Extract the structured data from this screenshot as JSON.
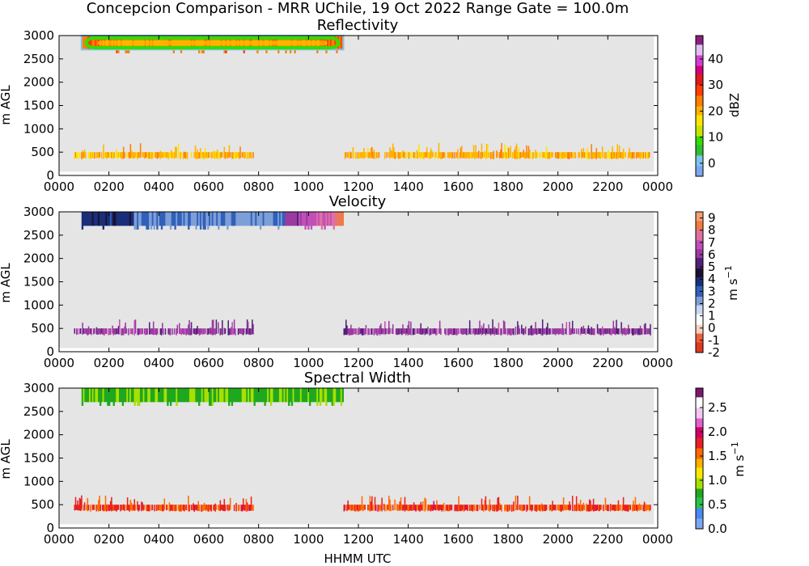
{
  "figure": {
    "suptitle": "Concepcion Comparison - MRR UChile, 19 Oct 2022 Range Gate = 100.0m",
    "xlabel": "HHMM UTC"
  },
  "colors": {
    "background": "#e5e5e5",
    "axes": "#000000"
  },
  "chart_data": [
    {
      "type": "heatmap",
      "title": "Reflectivity",
      "xlabel": "",
      "ylabel": "m AGL",
      "xlim": [
        0,
        2400
      ],
      "ylim": [
        0,
        3000
      ],
      "x_tick_labels": [
        "0000",
        "0200",
        "0400",
        "0600",
        "0800",
        "1000",
        "1200",
        "1400",
        "1600",
        "1800",
        "2000",
        "2200",
        "0000"
      ],
      "y_ticks": [
        0,
        500,
        1000,
        1500,
        2000,
        2500,
        3000
      ],
      "colorbar": {
        "label": "dBZ",
        "range": [
          -5,
          49
        ],
        "ticks": [
          0,
          10,
          20,
          30,
          40
        ],
        "tick_labels": [
          "0",
          "10",
          "20",
          "30",
          "40"
        ],
        "colors": [
          "#7ea6f0",
          "#7fc3ee",
          "#2fbf2f",
          "#33dd00",
          "#c7e400",
          "#ffe500",
          "#ffb300",
          "#ff7f00",
          "#ff3e00",
          "#e01a1a",
          "#d4007a",
          "#d23fd0",
          "#e0c0f0",
          "#8a1f80"
        ]
      },
      "features": {
        "upper_band": {
          "x": [
            90,
            1140
          ],
          "y": [
            2700,
            3000
          ],
          "typical_value": 25,
          "edge_value": 10
        },
        "lower_band_segments": [
          [
            60,
            780
          ],
          [
            1140,
            2370
          ]
        ],
        "lower_band_y": [
          350,
          500
        ],
        "lower_band_typical_value": 20
      }
    },
    {
      "type": "heatmap",
      "title": "Velocity",
      "xlabel": "",
      "ylabel": "m s⁻¹ / m AGL",
      "xlim": [
        0,
        2400
      ],
      "ylim": [
        0,
        3000
      ],
      "x_tick_labels": [
        "0000",
        "0200",
        "0400",
        "0600",
        "0800",
        "1000",
        "1200",
        "1400",
        "1600",
        "1800",
        "2000",
        "2200",
        "0000"
      ],
      "y_ticks": [
        0,
        500,
        1000,
        1500,
        2000,
        2500,
        3000
      ],
      "colorbar": {
        "label": "m s⁻¹",
        "range": [
          -2,
          9.5
        ],
        "ticks": [
          -2,
          -1,
          0,
          1,
          2,
          3,
          4,
          5,
          6,
          7,
          8,
          9
        ],
        "tick_labels": [
          "-2",
          "-1",
          "0",
          "1",
          "2",
          "3",
          "4",
          "5",
          "6",
          "7",
          "8",
          "9"
        ],
        "colors": [
          "#e23820",
          "#f06040",
          "#fbd0c0",
          "#ffffff",
          "#c8d8f0",
          "#7d9fd8",
          "#3060b8",
          "#1a2f78",
          "#1a1030",
          "#50207a",
          "#9b3aa0",
          "#c050b8",
          "#e070a0",
          "#f07a40",
          "#f5a070"
        ]
      },
      "features": {
        "upper_band": {
          "x": [
            90,
            1140
          ],
          "y": [
            2700,
            3000
          ],
          "typical_value": 2.5,
          "late_value": 5.5
        },
        "lower_band_segments": [
          [
            60,
            780
          ],
          [
            1140,
            2370
          ]
        ],
        "lower_band_y": [
          350,
          500
        ],
        "lower_band_typical_value": 6
      }
    },
    {
      "type": "heatmap",
      "title": "Spectral Width",
      "xlabel": "HHMM UTC",
      "ylabel": "m AGL",
      "xlim": [
        0,
        2400
      ],
      "ylim": [
        0,
        3000
      ],
      "x_tick_labels": [
        "0000",
        "0200",
        "0400",
        "0600",
        "0800",
        "1000",
        "1200",
        "1400",
        "1600",
        "1800",
        "2000",
        "2200",
        "0000"
      ],
      "y_ticks": [
        0,
        500,
        1000,
        1500,
        2000,
        2500,
        3000
      ],
      "colorbar": {
        "label": "m s⁻¹",
        "range": [
          0,
          2.9
        ],
        "ticks": [
          0.0,
          0.5,
          1.0,
          1.5,
          2.0,
          2.5
        ],
        "tick_labels": [
          "0.0",
          "0.5",
          "1.0",
          "1.5",
          "2.0",
          "2.5"
        ],
        "colors": [
          "#7ea6f0",
          "#4a8af0",
          "#27c44a",
          "#1fa81f",
          "#a8e000",
          "#ffe800",
          "#ffb000",
          "#ff6a00",
          "#e82020",
          "#d2006a",
          "#e060d0",
          "#f0c8f0",
          "#ffffff",
          "#7a1870"
        ]
      },
      "features": {
        "upper_band": {
          "x": [
            90,
            1140
          ],
          "y": [
            2700,
            3000
          ],
          "typical_value": 0.8
        },
        "lower_band_segments": [
          [
            60,
            780
          ],
          [
            1140,
            2370
          ]
        ],
        "lower_band_y": [
          350,
          500
        ],
        "lower_band_typical_value": 1.7
      }
    }
  ]
}
